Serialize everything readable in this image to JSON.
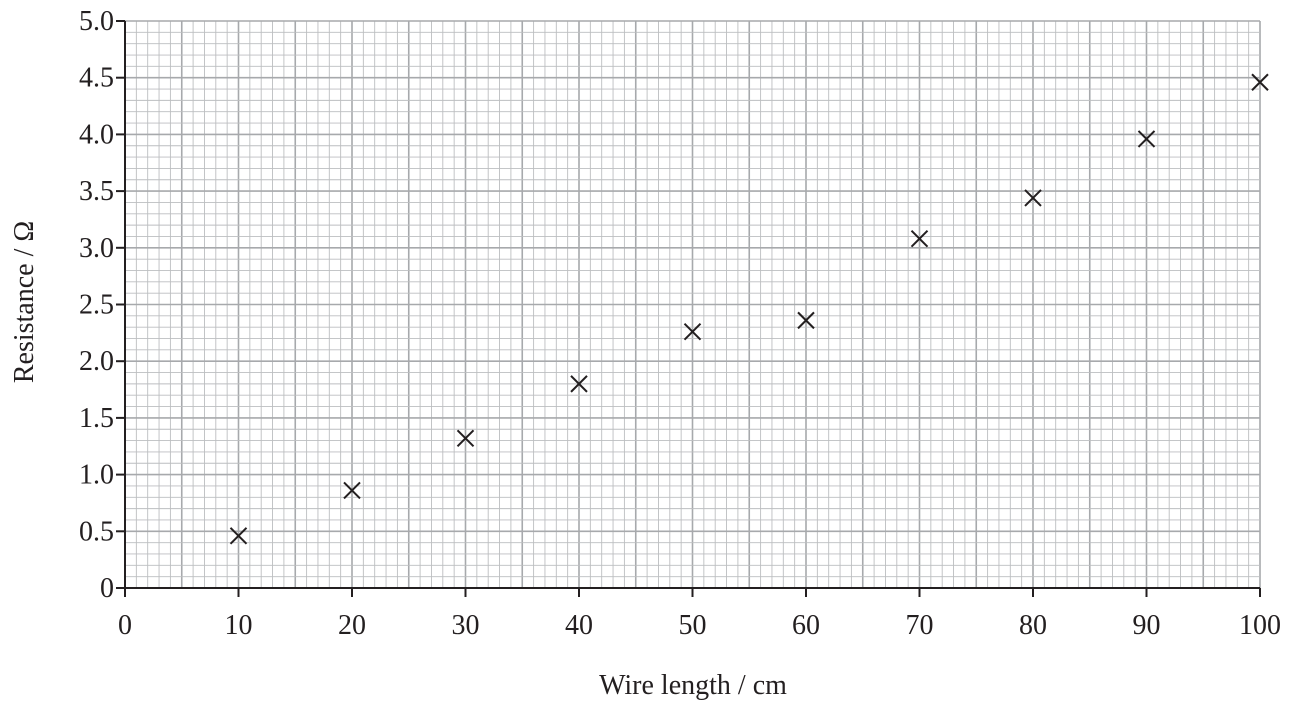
{
  "chart_data": {
    "type": "scatter",
    "title": "",
    "xlabel": "Wire length / cm",
    "ylabel": "Resistance / Ω",
    "xlim": [
      0,
      100
    ],
    "ylim": [
      0,
      5.0
    ],
    "grid": true,
    "x_ticks": [
      {
        "value": 0,
        "label": "0"
      },
      {
        "value": 10,
        "label": "10"
      },
      {
        "value": 20,
        "label": "20"
      },
      {
        "value": 30,
        "label": "30"
      },
      {
        "value": 40,
        "label": "40"
      },
      {
        "value": 50,
        "label": "50"
      },
      {
        "value": 60,
        "label": "60"
      },
      {
        "value": 70,
        "label": "70"
      },
      {
        "value": 80,
        "label": "80"
      },
      {
        "value": 90,
        "label": "90"
      },
      {
        "value": 100,
        "label": "100"
      }
    ],
    "y_ticks": [
      {
        "value": 0,
        "label": "0"
      },
      {
        "value": 0.5,
        "label": "0.5"
      },
      {
        "value": 1.0,
        "label": "1.0"
      },
      {
        "value": 1.5,
        "label": "1.5"
      },
      {
        "value": 2.0,
        "label": "2.0"
      },
      {
        "value": 2.5,
        "label": "2.5"
      },
      {
        "value": 3.0,
        "label": "3.0"
      },
      {
        "value": 3.5,
        "label": "3.5"
      },
      {
        "value": 4.0,
        "label": "4.0"
      },
      {
        "value": 4.5,
        "label": "4.5"
      },
      {
        "value": 5.0,
        "label": "5.0"
      }
    ],
    "series": [
      {
        "marker": "cross",
        "points": [
          {
            "x": 10,
            "y": 0.46
          },
          {
            "x": 20,
            "y": 0.86
          },
          {
            "x": 30,
            "y": 1.32
          },
          {
            "x": 40,
            "y": 1.8
          },
          {
            "x": 50,
            "y": 2.26
          },
          {
            "x": 60,
            "y": 2.36
          },
          {
            "x": 70,
            "y": 3.08
          },
          {
            "x": 80,
            "y": 3.44
          },
          {
            "x": 90,
            "y": 3.96
          },
          {
            "x": 100,
            "y": 4.46
          }
        ]
      }
    ],
    "colors": {
      "axis": "#231f20",
      "grid_minor": "#bcbec0",
      "grid_major": "#a7a9ac",
      "marker": "#231f20"
    }
  }
}
